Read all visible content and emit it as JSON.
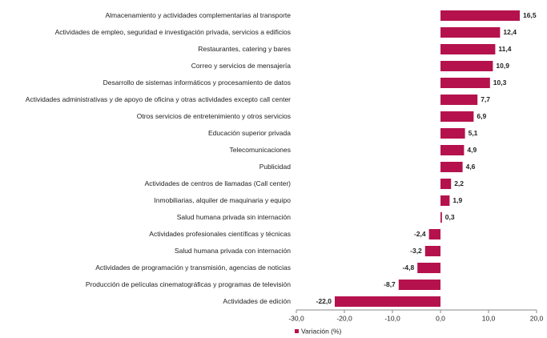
{
  "chart_data": {
    "type": "barh",
    "categories": [
      "Almacenamiento y actividades complementarias al transporte",
      "Actividades de empleo, seguridad e investigación privada, servicios a edificios",
      "Restaurantes, catering y bares",
      "Correo y servicios de mensajería",
      "Desarrollo de sistemas informáticos y procesamiento de datos",
      "Actividades administrativas y de apoyo de oficina y otras actividades excepto call center",
      "Otros servicios de entretenimiento y otros servicios",
      "Educación superior privada",
      "Telecomunicaciones",
      "Publicidad",
      "Actividades de centros de llamadas (Call center)",
      "Inmobiliarias, alquiler de maquinaria y equipo",
      "Salud humana privada sin internación",
      "Actividades profesionales científicas y técnicas",
      "Salud humana privada con internación",
      "Actividades de programación y transmisión,  agencias de noticias",
      "Producción de películas cinematográficas y programas de televisión",
      "Actividades de edición"
    ],
    "series": [
      {
        "name": "Variación (%)",
        "color": "#b5124d",
        "values": [
          16.5,
          12.4,
          11.4,
          10.9,
          10.3,
          7.7,
          6.9,
          5.1,
          4.9,
          4.6,
          2.2,
          1.9,
          0.3,
          -2.4,
          -3.2,
          -4.8,
          -8.7,
          -22.0
        ],
        "value_labels": [
          "16,5",
          "12,4",
          "11,4",
          "10,9",
          "10,3",
          "7,7",
          "6,9",
          "5,1",
          "4,9",
          "4,6",
          "2,2",
          "1,9",
          "0,3",
          "-2,4",
          "-3,2",
          "-4,8",
          "-8,7",
          "-22,0"
        ]
      }
    ],
    "xlim": [
      -30,
      20
    ],
    "xticks": [
      {
        "value": -30,
        "label": "-30,0"
      },
      {
        "value": -20,
        "label": "-20,0"
      },
      {
        "value": -10,
        "label": "-10,0"
      },
      {
        "value": 0,
        "label": "0,0"
      },
      {
        "value": 10,
        "label": "10,0"
      },
      {
        "value": 20,
        "label": "20,0"
      }
    ],
    "legend": "bottom"
  }
}
